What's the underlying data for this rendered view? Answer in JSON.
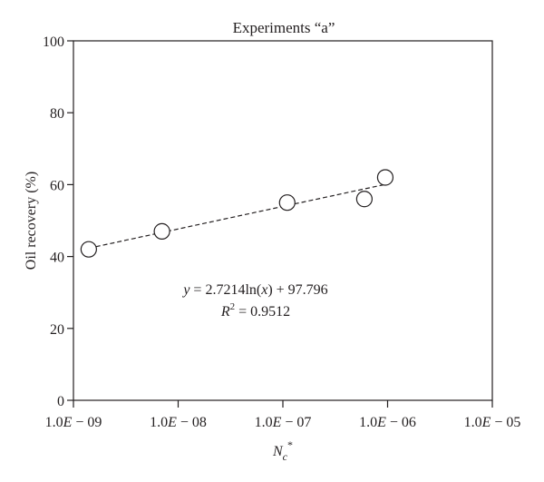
{
  "chart_data": {
    "type": "scatter",
    "title": "Experiments “a”",
    "xlabel": "N",
    "xlabel_sub": "c",
    "xlabel_sup": "*",
    "ylabel": "Oil recovery (%)",
    "x_scale": "log",
    "xlim": [
      1e-09,
      1e-05
    ],
    "ylim": [
      0,
      100
    ],
    "x_ticks": [
      {
        "value": 1e-09,
        "prefix": "1.0",
        "mid": "E",
        "suffix": " − 09"
      },
      {
        "value": 1e-08,
        "prefix": "1.0",
        "mid": "E",
        "suffix": " − 08"
      },
      {
        "value": 1e-07,
        "prefix": "1.0",
        "mid": "E",
        "suffix": " − 07"
      },
      {
        "value": 1e-06,
        "prefix": "1.0",
        "mid": "E",
        "suffix": " − 06"
      },
      {
        "value": 1e-05,
        "prefix": "1.0",
        "mid": "E",
        "suffix": " − 05"
      }
    ],
    "y_ticks": [
      0,
      20,
      40,
      60,
      80,
      100
    ],
    "grid": false,
    "points": [
      {
        "x": 1.4e-09,
        "y": 42
      },
      {
        "x": 7e-09,
        "y": 47
      },
      {
        "x": 1.1e-07,
        "y": 55
      },
      {
        "x": 6e-07,
        "y": 56
      },
      {
        "x": 9.5e-07,
        "y": 62
      }
    ],
    "trendline": {
      "type": "logarithmic",
      "coef": 2.7214,
      "intercept": 97.796,
      "x_range": [
        1.4e-09,
        9.5e-07
      ],
      "style": "dashed",
      "equation": {
        "y": "y",
        "eq": " = 2.7214ln(",
        "x": "x",
        "rest": ") + 97.796"
      },
      "r2": {
        "r": "R",
        "sup": "2",
        "rest": " = 0.9512"
      }
    }
  }
}
